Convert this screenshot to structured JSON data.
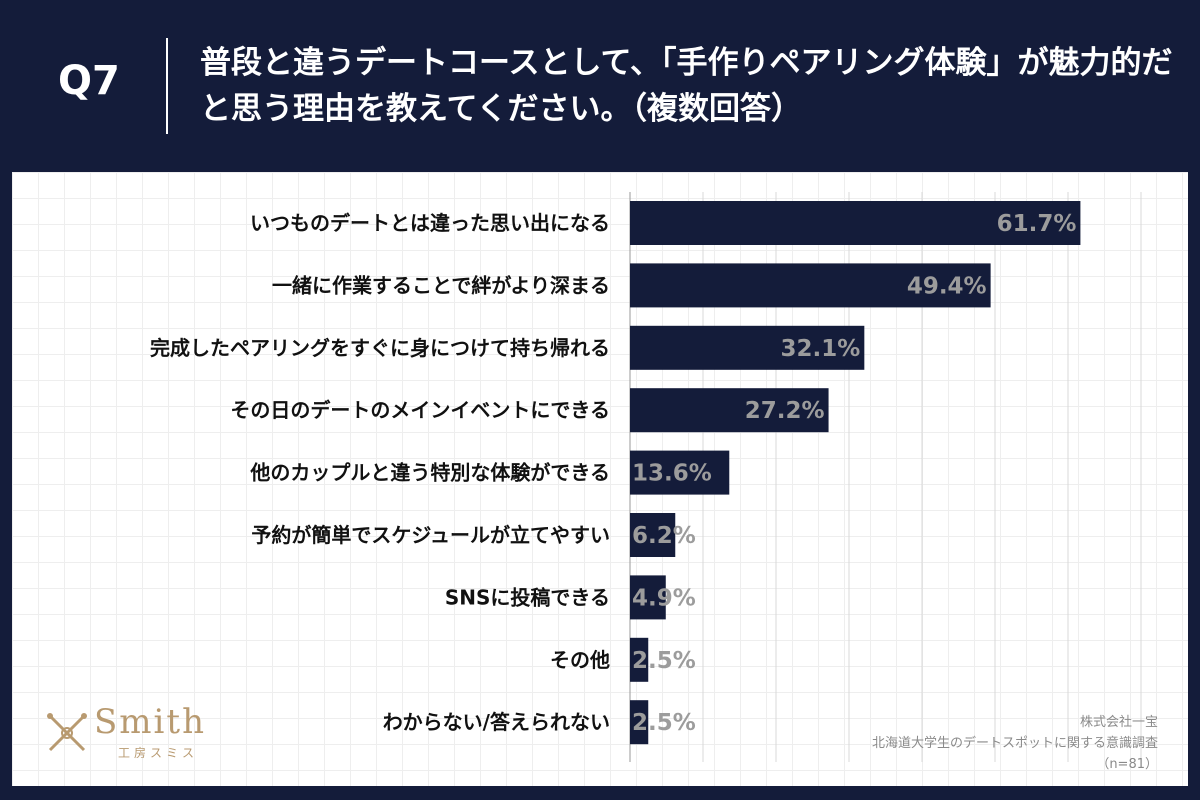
{
  "header": {
    "question_number": "Q7",
    "question_text": "普段と違うデートコースとして、「手作りペアリング体験」が魅力的だと思う理由を教えてください。（複数回答）"
  },
  "chart_data": {
    "type": "bar",
    "orientation": "horizontal",
    "unit": "%",
    "categories": [
      "いつものデートとは違った思い出になる",
      "一緒に作業することで絆がより深まる",
      "完成したペアリングをすぐに身につけて持ち帰れる",
      "その日のデートのメインイベントにできる",
      "他のカップルと違う特別な体験ができる",
      "予約が簡単でスケジュールが立てやすい",
      "SNSに投稿できる",
      "その他",
      "わからない/答えられない"
    ],
    "values": [
      61.7,
      49.4,
      32.1,
      27.2,
      13.6,
      6.2,
      4.9,
      2.5,
      2.5
    ],
    "value_labels": [
      "61.7%",
      "49.4%",
      "32.1%",
      "27.2%",
      "13.6%",
      "6.2%",
      "4.9%",
      "2.5%",
      "2.5%"
    ],
    "xlim": [
      0,
      70
    ],
    "grid_step": 10,
    "bar_color": "#141c3a",
    "value_label_color": "#9c9c9c"
  },
  "logo": {
    "name": "Smith",
    "subtitle": "工房スミス",
    "color": "#b89a70"
  },
  "source": {
    "company": "株式会社一宝",
    "survey": "北海道大学生のデートスポットに関する意識調査",
    "sample": "（n=81）"
  },
  "colors": {
    "background": "#141c3a",
    "panel": "#ffffff"
  }
}
